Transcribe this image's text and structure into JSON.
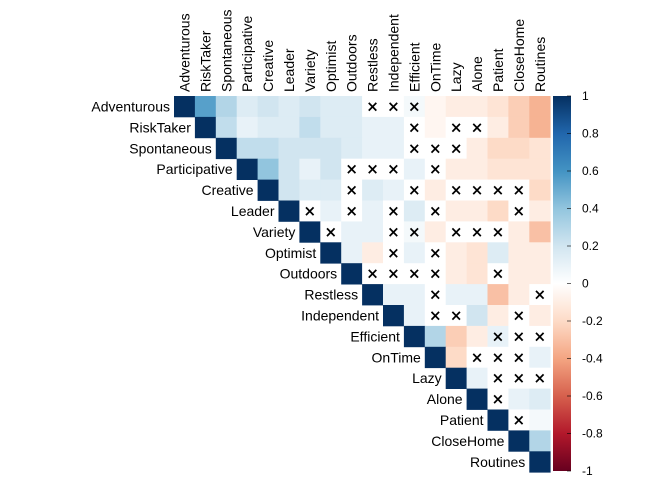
{
  "chart_data": {
    "type": "heatmap",
    "layout": "upper-triangular correlation matrix",
    "variables": [
      "Adventurous",
      "RiskTaker",
      "Spontaneous",
      "Participative",
      "Creative",
      "Leader",
      "Variety",
      "Optimist",
      "Outdoors",
      "Restless",
      "Independent",
      "Efficient",
      "OnTime",
      "Lazy",
      "Alone",
      "Patient",
      "CloseHome",
      "Routines"
    ],
    "matrix": [
      [
        1,
        0.55,
        0.3,
        0.15,
        0.2,
        0.15,
        0.2,
        0.15,
        0.15,
        0,
        0,
        0.05,
        -0.05,
        -0.1,
        -0.1,
        -0.15,
        -0.25,
        -0.35
      ],
      [
        0.55,
        1,
        0.25,
        0.1,
        0.15,
        0.15,
        0.25,
        0.15,
        0.15,
        0.1,
        0.1,
        0,
        -0.05,
        0,
        0,
        -0.1,
        -0.25,
        -0.35
      ],
      [
        0.3,
        0.25,
        1,
        0.25,
        0.25,
        0.2,
        0.2,
        0.2,
        0.15,
        0.1,
        0.1,
        0,
        0,
        0,
        -0.1,
        -0.2,
        -0.2,
        -0.15
      ],
      [
        0.15,
        0.1,
        0.25,
        1,
        0.4,
        0.2,
        0.1,
        0.2,
        0,
        0,
        0,
        0.1,
        0,
        -0.1,
        -0.1,
        -0.15,
        -0.15,
        -0.15
      ],
      [
        0.2,
        0.15,
        0.25,
        0.4,
        1,
        0.2,
        0.15,
        0.15,
        0,
        0.15,
        0.1,
        0,
        -0.1,
        0,
        0,
        0,
        0,
        -0.2
      ],
      [
        0.15,
        0.15,
        0.2,
        0.2,
        0.2,
        1,
        0,
        0.1,
        0,
        0.1,
        0,
        0.15,
        0,
        -0.1,
        -0.1,
        -0.2,
        0,
        -0.1
      ],
      [
        0.2,
        0.25,
        0.2,
        0.1,
        0.15,
        0,
        1,
        0,
        0.1,
        0.1,
        0,
        0.05,
        -0.1,
        0,
        0,
        0,
        -0.1,
        -0.3
      ],
      [
        0.15,
        0.15,
        0.2,
        0.2,
        0.15,
        0.1,
        0,
        1,
        0.1,
        -0.1,
        0,
        0.1,
        0,
        -0.1,
        -0.15,
        0.15,
        -0.1,
        -0.1
      ],
      [
        0.15,
        0.15,
        0.15,
        0,
        0,
        0,
        0.1,
        0.1,
        1,
        0,
        0,
        0,
        0,
        -0.1,
        -0.15,
        0,
        -0.1,
        -0.1
      ],
      [
        0,
        0.1,
        0.1,
        0,
        0.15,
        0.1,
        0.1,
        -0.1,
        0,
        1,
        0.1,
        0.1,
        0,
        0.1,
        0.1,
        -0.3,
        -0.1,
        0
      ],
      [
        0,
        0.1,
        0.1,
        0,
        0.1,
        0,
        0,
        0,
        0,
        0.1,
        1,
        0.1,
        0,
        0,
        0.2,
        -0.1,
        0,
        -0.1
      ],
      [
        0.05,
        0,
        0,
        0.1,
        0,
        0.15,
        0.05,
        0.1,
        0,
        0.1,
        0.1,
        1,
        0.3,
        -0.25,
        -0.1,
        0.1,
        0,
        0
      ],
      [
        -0.05,
        -0.05,
        0,
        0,
        -0.1,
        0,
        -0.1,
        0,
        0,
        0,
        0,
        0.3,
        1,
        -0.2,
        0,
        0,
        0,
        0.1
      ],
      [
        -0.1,
        0,
        0,
        -0.1,
        0,
        -0.1,
        0,
        -0.1,
        -0.1,
        0.1,
        0,
        -0.25,
        -0.2,
        1,
        0.1,
        0,
        0,
        0
      ],
      [
        -0.1,
        0,
        -0.1,
        -0.1,
        0,
        -0.1,
        0,
        -0.15,
        -0.15,
        0.1,
        0.2,
        -0.1,
        0,
        0.1,
        1,
        0,
        0.1,
        0.15
      ],
      [
        -0.15,
        -0.1,
        -0.2,
        -0.15,
        0,
        -0.2,
        0,
        0.15,
        0,
        -0.3,
        -0.1,
        0.1,
        0,
        0,
        0,
        1,
        0,
        0.05
      ],
      [
        -0.25,
        -0.25,
        -0.2,
        -0.15,
        0,
        0,
        -0.1,
        -0.1,
        -0.1,
        -0.1,
        0,
        0,
        0,
        0,
        0.1,
        0,
        1,
        0.3
      ],
      [
        -0.35,
        -0.35,
        -0.15,
        -0.15,
        -0.2,
        -0.1,
        -0.3,
        -0.1,
        -0.1,
        0,
        -0.1,
        0,
        0.1,
        0,
        0.15,
        0.05,
        0.3,
        1
      ]
    ],
    "insignificant_marker": "×",
    "insignificant_pairs": [
      [
        "Adventurous",
        "Restless"
      ],
      [
        "Adventurous",
        "Independent"
      ],
      [
        "Adventurous",
        "Efficient"
      ],
      [
        "RiskTaker",
        "Efficient"
      ],
      [
        "RiskTaker",
        "Lazy"
      ],
      [
        "RiskTaker",
        "Alone"
      ],
      [
        "Spontaneous",
        "Efficient"
      ],
      [
        "Spontaneous",
        "OnTime"
      ],
      [
        "Spontaneous",
        "Lazy"
      ],
      [
        "Participative",
        "Outdoors"
      ],
      [
        "Participative",
        "Restless"
      ],
      [
        "Participative",
        "Independent"
      ],
      [
        "Participative",
        "OnTime"
      ],
      [
        "Creative",
        "Outdoors"
      ],
      [
        "Creative",
        "Efficient"
      ],
      [
        "Creative",
        "Lazy"
      ],
      [
        "Creative",
        "Alone"
      ],
      [
        "Creative",
        "Patient"
      ],
      [
        "Creative",
        "CloseHome"
      ],
      [
        "Leader",
        "Variety"
      ],
      [
        "Leader",
        "Outdoors"
      ],
      [
        "Leader",
        "Independent"
      ],
      [
        "Leader",
        "OnTime"
      ],
      [
        "Leader",
        "CloseHome"
      ],
      [
        "Variety",
        "Optimist"
      ],
      [
        "Variety",
        "Independent"
      ],
      [
        "Variety",
        "Efficient"
      ],
      [
        "Variety",
        "Lazy"
      ],
      [
        "Variety",
        "Alone"
      ],
      [
        "Variety",
        "Patient"
      ],
      [
        "Optimist",
        "Independent"
      ],
      [
        "Optimist",
        "OnTime"
      ],
      [
        "Outdoors",
        "Restless"
      ],
      [
        "Outdoors",
        "Independent"
      ],
      [
        "Outdoors",
        "Efficient"
      ],
      [
        "Outdoors",
        "OnTime"
      ],
      [
        "Outdoors",
        "Patient"
      ],
      [
        "Restless",
        "OnTime"
      ],
      [
        "Restless",
        "Routines"
      ],
      [
        "Independent",
        "OnTime"
      ],
      [
        "Independent",
        "Lazy"
      ],
      [
        "Independent",
        "CloseHome"
      ],
      [
        "Efficient",
        "Patient"
      ],
      [
        "Efficient",
        "CloseHome"
      ],
      [
        "Efficient",
        "Routines"
      ],
      [
        "OnTime",
        "Alone"
      ],
      [
        "OnTime",
        "Patient"
      ],
      [
        "OnTime",
        "CloseHome"
      ],
      [
        "Lazy",
        "Patient"
      ],
      [
        "Lazy",
        "CloseHome"
      ],
      [
        "Lazy",
        "Routines"
      ],
      [
        "Alone",
        "Patient"
      ],
      [
        "Patient",
        "CloseHome"
      ]
    ],
    "colorbar": {
      "min": -1,
      "max": 1,
      "ticks": [
        "1",
        "0.8",
        "0.6",
        "0.4",
        "0.2",
        "0",
        "-0.2",
        "-0.4",
        "-0.6",
        "-0.8",
        "-1"
      ],
      "colors": [
        "#67001F",
        "#B2182B",
        "#D6604D",
        "#F4A582",
        "#FDDBC7",
        "#FFFFFF",
        "#D1E5F0",
        "#92C5DE",
        "#4393C3",
        "#2166AC",
        "#053061"
      ]
    },
    "title": "",
    "legend_position": "right"
  }
}
